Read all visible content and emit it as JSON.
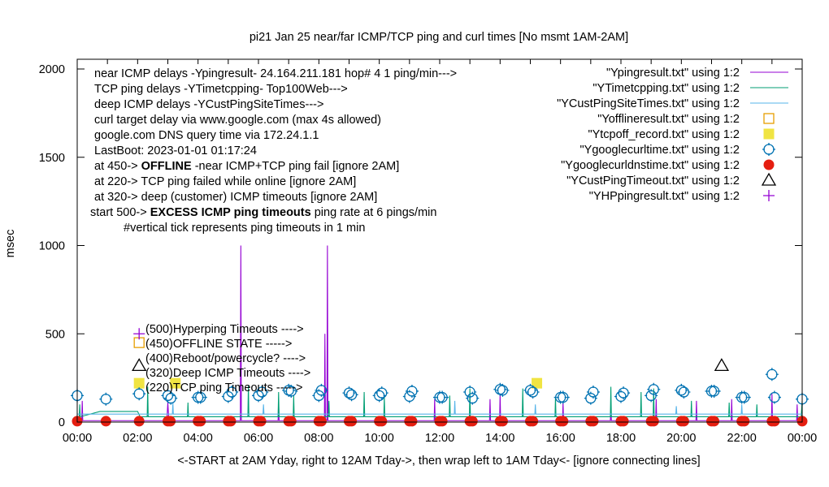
{
  "chart_data": {
    "type": "line",
    "title": "pi21 Jan 25  near/far ICMP/TCP ping and curl times [No msmt 1AM-2AM]",
    "xlabel": "<-START at 2AM Yday, right to 12AM Tday->, then wrap left to 1AM Tday<- [ignore connecting lines]",
    "ylabel": "msec",
    "xlim": [
      "00:00",
      "24:00"
    ],
    "ylim": [
      0,
      2000
    ],
    "x_ticks": [
      "00:00",
      "02:00",
      "04:00",
      "06:00",
      "08:00",
      "10:00",
      "12:00",
      "14:00",
      "16:00",
      "18:00",
      "20:00",
      "22:00",
      "00:00"
    ],
    "y_ticks": [
      0,
      500,
      1000,
      1500,
      2000
    ],
    "grid": false,
    "legend_position": "top-right",
    "info_lines": [
      {
        "text": "near ICMP delays -Ypingresult- 24.164.211.181 hop# 4 1 ping/min--->"
      },
      {
        "text": "TCP ping delays -YTimetcpping- Top100Web--->"
      },
      {
        "text": "deep ICMP delays -YCustPingSiteTimes--->"
      },
      {
        "text": "curl target delay via www.google.com (max 4s allowed)"
      },
      {
        "text": "google.com DNS query time via 172.24.1.1"
      },
      {
        "text": "LastBoot: 2023-01-01 01:17:24"
      },
      {
        "pre": "at 450-> ",
        "bold": "OFFLINE",
        "post": " -near ICMP+TCP ping fail [ignore 2AM]"
      },
      {
        "text": "at 220-> TCP ping failed while online [ignore 2AM]"
      },
      {
        "text": "at 320-> deep (customer) ICMP timeouts [ignore 2AM]"
      },
      {
        "pre": "start 500-> ",
        "bold": "EXCESS ICMP ping timeouts",
        "post": "  ping rate at 6 pings/min"
      },
      {
        "text": "#vertical tick represents ping timeouts in 1 min"
      }
    ],
    "key_annotations": [
      {
        "y": 500,
        "text": "(500)Hyperping Timeouts ---->"
      },
      {
        "y": 450,
        "text": "(450)OFFLINE STATE ----->"
      },
      {
        "y": 400,
        "text": "(400)Reboot/powercycle? ---->"
      },
      {
        "y": 320,
        "text": "(320)Deep ICMP Timeouts ---->"
      },
      {
        "y": 220,
        "text": "(220)TCP ping Timeouts ----->"
      }
    ],
    "series": [
      {
        "name": "\"Ypingresult.txt\" using 1:2",
        "style": "line",
        "color": "#9400d3",
        "points": [
          [
            "00:00",
            8
          ],
          [
            "00:09",
            8
          ],
          [
            "00:10",
            120
          ],
          [
            "00:11",
            8
          ],
          [
            "02:58",
            8
          ],
          [
            "03:00",
            110
          ],
          [
            "03:02",
            8
          ],
          [
            "05:24",
            8
          ],
          [
            "05:25",
            1000
          ],
          [
            "05:26",
            8
          ],
          [
            "06:39",
            8
          ],
          [
            "06:40",
            120
          ],
          [
            "06:41",
            8
          ],
          [
            "08:11",
            8
          ],
          [
            "08:12",
            500
          ],
          [
            "08:13",
            8
          ],
          [
            "08:16",
            8
          ],
          [
            "08:17",
            1000
          ],
          [
            "08:18",
            8
          ],
          [
            "11:49",
            8
          ],
          [
            "11:50",
            130
          ],
          [
            "11:51",
            8
          ],
          [
            "13:39",
            8
          ],
          [
            "13:40",
            130
          ],
          [
            "13:41",
            8
          ],
          [
            "13:59",
            8
          ],
          [
            "14:00",
            160
          ],
          [
            "14:01",
            8
          ],
          [
            "16:04",
            8
          ],
          [
            "16:05",
            110
          ],
          [
            "16:06",
            8
          ],
          [
            "17:39",
            8
          ],
          [
            "17:40",
            90
          ],
          [
            "17:41",
            8
          ],
          [
            "19:09",
            8
          ],
          [
            "19:10",
            130
          ],
          [
            "19:11",
            8
          ],
          [
            "20:29",
            8
          ],
          [
            "20:30",
            120
          ],
          [
            "20:31",
            8
          ],
          [
            "21:39",
            8
          ],
          [
            "21:40",
            130
          ],
          [
            "21:41",
            8
          ],
          [
            "22:59",
            8
          ],
          [
            "23:00",
            160
          ],
          [
            "23:01",
            8
          ],
          [
            "23:49",
            8
          ],
          [
            "23:50",
            100
          ],
          [
            "23:51",
            8
          ],
          [
            "24:00",
            8
          ]
        ]
      },
      {
        "name": "\"YTimetcpping.txt\" using 1:2",
        "style": "line",
        "color": "#009e73",
        "points": [
          [
            "00:00",
            30
          ],
          [
            "00:04",
            30
          ],
          [
            "00:05",
            100
          ],
          [
            "00:06",
            30
          ],
          [
            "00:45",
            60
          ],
          [
            "02:00",
            60
          ],
          [
            "02:05",
            30
          ],
          [
            "02:19",
            30
          ],
          [
            "02:20",
            200
          ],
          [
            "02:21",
            30
          ],
          [
            "03:39",
            30
          ],
          [
            "03:40",
            110
          ],
          [
            "03:41",
            30
          ],
          [
            "05:39",
            30
          ],
          [
            "05:40",
            210
          ],
          [
            "05:41",
            30
          ],
          [
            "06:39",
            30
          ],
          [
            "06:40",
            170
          ],
          [
            "06:41",
            30
          ],
          [
            "07:09",
            30
          ],
          [
            "07:10",
            150
          ],
          [
            "07:11",
            30
          ],
          [
            "08:19",
            30
          ],
          [
            "08:20",
            120
          ],
          [
            "08:21",
            30
          ],
          [
            "09:29",
            30
          ],
          [
            "09:30",
            170
          ],
          [
            "09:31",
            30
          ],
          [
            "10:09",
            30
          ],
          [
            "10:10",
            140
          ],
          [
            "10:11",
            30
          ],
          [
            "12:19",
            30
          ],
          [
            "12:20",
            150
          ],
          [
            "12:21",
            30
          ],
          [
            "12:59",
            30
          ],
          [
            "13:00",
            190
          ],
          [
            "13:01",
            30
          ],
          [
            "14:44",
            30
          ],
          [
            "14:45",
            190
          ],
          [
            "14:46",
            30
          ],
          [
            "15:49",
            30
          ],
          [
            "15:50",
            140
          ],
          [
            "15:51",
            30
          ],
          [
            "17:39",
            30
          ],
          [
            "17:40",
            200
          ],
          [
            "17:41",
            30
          ],
          [
            "18:39",
            30
          ],
          [
            "18:40",
            170
          ],
          [
            "18:41",
            30
          ],
          [
            "19:04",
            30
          ],
          [
            "19:05",
            190
          ],
          [
            "19:06",
            30
          ],
          [
            "20:19",
            30
          ],
          [
            "20:20",
            120
          ],
          [
            "20:21",
            30
          ],
          [
            "21:34",
            30
          ],
          [
            "21:35",
            110
          ],
          [
            "21:36",
            30
          ],
          [
            "22:29",
            30
          ],
          [
            "22:30",
            100
          ],
          [
            "22:31",
            30
          ],
          [
            "23:58",
            30
          ],
          [
            "24:00",
            120
          ]
        ]
      },
      {
        "name": "\"YCustPingSiteTimes.txt\" using 1:2",
        "style": "line",
        "color": "#56b4e9",
        "points": [
          [
            "00:00",
            45
          ],
          [
            "00:40",
            45
          ],
          [
            "02:00",
            45
          ],
          [
            "03:09",
            45
          ],
          [
            "03:10",
            110
          ],
          [
            "03:11",
            45
          ],
          [
            "06:09",
            45
          ],
          [
            "06:10",
            100
          ],
          [
            "06:11",
            45
          ],
          [
            "12:29",
            45
          ],
          [
            "12:30",
            120
          ],
          [
            "12:31",
            45
          ],
          [
            "15:09",
            45
          ],
          [
            "15:10",
            100
          ],
          [
            "15:11",
            45
          ],
          [
            "19:49",
            45
          ],
          [
            "19:50",
            90
          ],
          [
            "19:51",
            45
          ],
          [
            "21:59",
            45
          ],
          [
            "22:00",
            100
          ],
          [
            "22:01",
            45
          ],
          [
            "24:00",
            45
          ]
        ]
      },
      {
        "name": "\"Yofflineresult.txt\" using 1:2",
        "style": "open-square",
        "color": "#e69f00",
        "points": [
          [
            "02:03",
            450
          ]
        ]
      },
      {
        "name": "\"Ytcpoff_record.txt\" using 1:2",
        "style": "filled-square",
        "color": "#f0e442",
        "points": [
          [
            "02:03",
            220
          ],
          [
            "03:15",
            220
          ],
          [
            "15:13",
            220
          ]
        ]
      },
      {
        "name": "\"Ygooglecurltime.txt\" using 1:2",
        "style": "open-circle",
        "color": "#0072b2",
        "points": [
          [
            "00:00",
            150
          ],
          [
            "00:57",
            130
          ],
          [
            "02:03",
            160
          ],
          [
            "03:00",
            150
          ],
          [
            "03:06",
            135
          ],
          [
            "04:00",
            140
          ],
          [
            "04:05",
            140
          ],
          [
            "05:00",
            145
          ],
          [
            "05:07",
            170
          ],
          [
            "06:00",
            150
          ],
          [
            "06:07",
            170
          ],
          [
            "07:00",
            180
          ],
          [
            "07:05",
            175
          ],
          [
            "08:00",
            150
          ],
          [
            "08:05",
            180
          ],
          [
            "09:00",
            165
          ],
          [
            "09:05",
            155
          ],
          [
            "10:00",
            150
          ],
          [
            "10:05",
            165
          ],
          [
            "11:00",
            145
          ],
          [
            "11:05",
            175
          ],
          [
            "12:00",
            140
          ],
          [
            "12:05",
            140
          ],
          [
            "13:00",
            170
          ],
          [
            "13:05",
            135
          ],
          [
            "14:00",
            185
          ],
          [
            "14:05",
            180
          ],
          [
            "15:00",
            180
          ],
          [
            "15:05",
            170
          ],
          [
            "16:00",
            140
          ],
          [
            "16:05",
            140
          ],
          [
            "17:00",
            135
          ],
          [
            "17:05",
            170
          ],
          [
            "18:00",
            145
          ],
          [
            "18:05",
            165
          ],
          [
            "19:00",
            150
          ],
          [
            "19:05",
            185
          ],
          [
            "20:00",
            180
          ],
          [
            "20:05",
            170
          ],
          [
            "21:00",
            175
          ],
          [
            "21:05",
            175
          ],
          [
            "22:00",
            140
          ],
          [
            "22:05",
            140
          ],
          [
            "23:00",
            270
          ],
          [
            "23:05",
            140
          ],
          [
            "24:00",
            130
          ]
        ]
      },
      {
        "name": "\"Ygooglecurldnstime.txt\" using 1:2",
        "style": "filled-circle",
        "color": "#e51e10",
        "points": [
          [
            "00:00",
            5
          ],
          [
            "00:57",
            5
          ],
          [
            "02:03",
            5
          ],
          [
            "03:00",
            5
          ],
          [
            "03:05",
            5
          ],
          [
            "04:00",
            5
          ],
          [
            "04:05",
            5
          ],
          [
            "05:00",
            5
          ],
          [
            "05:05",
            5
          ],
          [
            "06:00",
            5
          ],
          [
            "06:05",
            5
          ],
          [
            "07:00",
            5
          ],
          [
            "07:05",
            5
          ],
          [
            "08:00",
            5
          ],
          [
            "08:05",
            5
          ],
          [
            "09:00",
            5
          ],
          [
            "09:05",
            5
          ],
          [
            "10:00",
            5
          ],
          [
            "10:05",
            5
          ],
          [
            "11:00",
            5
          ],
          [
            "11:05",
            5
          ],
          [
            "12:00",
            5
          ],
          [
            "12:05",
            5
          ],
          [
            "13:00",
            5
          ],
          [
            "13:05",
            5
          ],
          [
            "14:00",
            5
          ],
          [
            "14:05",
            5
          ],
          [
            "15:00",
            5
          ],
          [
            "15:05",
            5
          ],
          [
            "16:00",
            5
          ],
          [
            "16:05",
            5
          ],
          [
            "17:00",
            5
          ],
          [
            "17:05",
            5
          ],
          [
            "18:00",
            5
          ],
          [
            "18:05",
            5
          ],
          [
            "19:00",
            5
          ],
          [
            "19:05",
            5
          ],
          [
            "20:00",
            5
          ],
          [
            "20:05",
            5
          ],
          [
            "21:00",
            5
          ],
          [
            "21:05",
            5
          ],
          [
            "22:00",
            5
          ],
          [
            "22:05",
            5
          ],
          [
            "23:00",
            5
          ],
          [
            "23:05",
            5
          ],
          [
            "24:00",
            5
          ]
        ]
      },
      {
        "name": "\"YCustPingTimeout.txt\" using 1:2",
        "style": "open-triangle",
        "color": "#000000",
        "points": [
          [
            "02:03",
            320
          ],
          [
            "21:20",
            320
          ]
        ]
      },
      {
        "name": "\"YHPpingresult.txt\" using 1:2",
        "style": "plus",
        "color": "#9400d3",
        "points": [
          [
            "02:03",
            500
          ]
        ]
      }
    ]
  }
}
